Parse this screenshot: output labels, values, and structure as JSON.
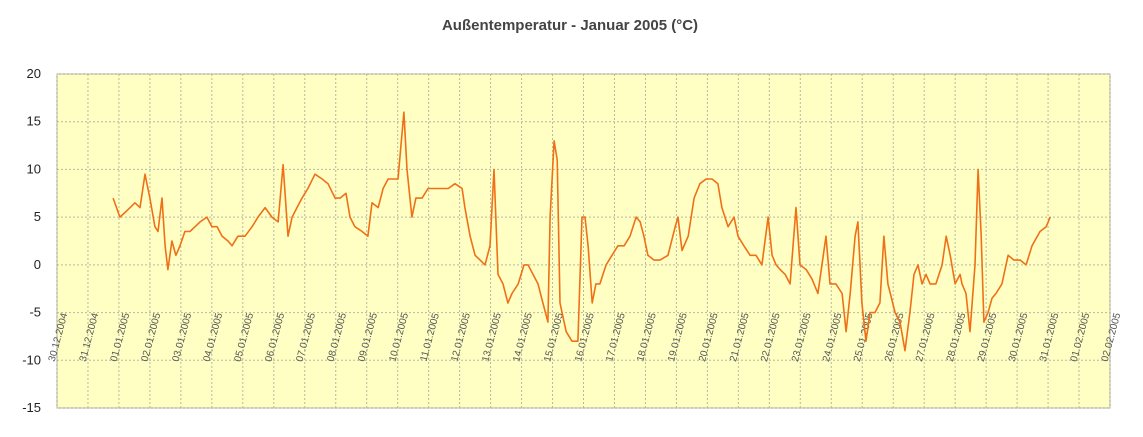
{
  "chart_data": {
    "type": "line",
    "title": "Außentemperatur - Januar 2005 (°C)",
    "xlim": [
      0,
      34
    ],
    "xticks": [
      {
        "value": 0,
        "label": "30.12.2004"
      },
      {
        "value": 1,
        "label": "31.12.2004"
      },
      {
        "value": 2,
        "label": "01.01.2005"
      },
      {
        "value": 3,
        "label": "02.01.2005"
      },
      {
        "value": 4,
        "label": "03.01.2005"
      },
      {
        "value": 5,
        "label": "04.01.2005"
      },
      {
        "value": 6,
        "label": "05.01.2005"
      },
      {
        "value": 7,
        "label": "06.01.2005"
      },
      {
        "value": 8,
        "label": "07.01.2005"
      },
      {
        "value": 9,
        "label": "08.01.2005"
      },
      {
        "value": 10,
        "label": "09.01.2005"
      },
      {
        "value": 11,
        "label": "10.01.2005"
      },
      {
        "value": 12,
        "label": "11.01.2005"
      },
      {
        "value": 13,
        "label": "12.01.2005"
      },
      {
        "value": 14,
        "label": "13.01.2005"
      },
      {
        "value": 15,
        "label": "14.01.2005"
      },
      {
        "value": 16,
        "label": "15.01.2005"
      },
      {
        "value": 17,
        "label": "16.01.2005"
      },
      {
        "value": 18,
        "label": "17.01.2005"
      },
      {
        "value": 19,
        "label": "18.01.2005"
      },
      {
        "value": 20,
        "label": "19.01.2005"
      },
      {
        "value": 21,
        "label": "20.01.2005"
      },
      {
        "value": 22,
        "label": "21.01.2005"
      },
      {
        "value": 23,
        "label": "22.01.2005"
      },
      {
        "value": 24,
        "label": "23.01.2005"
      },
      {
        "value": 25,
        "label": "24.01.2005"
      },
      {
        "value": 26,
        "label": "25.01.2005"
      },
      {
        "value": 27,
        "label": "26.01.2005"
      },
      {
        "value": 28,
        "label": "27.01.2005"
      },
      {
        "value": 29,
        "label": "28.01.2005"
      },
      {
        "value": 30,
        "label": "29.01.2005"
      },
      {
        "value": 31,
        "label": "30.01.2005"
      },
      {
        "value": 32,
        "label": "31.01.2005"
      },
      {
        "value": 33,
        "label": "01.02.2005"
      },
      {
        "value": 34,
        "label": "02.02.2005"
      }
    ],
    "ylim": [
      -15,
      20
    ],
    "yticks": [
      -15,
      -10,
      -5,
      0,
      5,
      10,
      15,
      20
    ],
    "grid": true,
    "series": [
      {
        "color": "#f07018",
        "x": [
          1.81,
          2.03,
          2.2,
          2.36,
          2.52,
          2.68,
          2.84,
          3.0,
          3.16,
          3.26,
          3.39,
          3.49,
          3.58,
          3.71,
          3.84,
          3.97,
          4.13,
          4.29,
          4.46,
          4.62,
          4.84,
          5.0,
          5.17,
          5.33,
          5.52,
          5.65,
          5.84,
          6.07,
          6.3,
          6.49,
          6.72,
          6.94,
          7.14,
          7.3,
          7.46,
          7.59,
          7.75,
          7.91,
          8.1,
          8.33,
          8.56,
          8.75,
          8.98,
          9.14,
          9.33,
          9.46,
          9.62,
          9.85,
          10.04,
          10.17,
          10.37,
          10.53,
          10.69,
          10.85,
          11.01,
          11.2,
          11.3,
          11.46,
          11.59,
          11.79,
          11.98,
          12.14,
          12.37,
          12.63,
          12.85,
          13.08,
          13.17,
          13.34,
          13.5,
          13.66,
          13.82,
          13.98,
          14.11,
          14.24,
          14.4,
          14.56,
          14.69,
          14.89,
          15.08,
          15.21,
          15.37,
          15.53,
          15.69,
          15.85,
          15.92,
          16.05,
          16.15,
          16.24,
          16.44,
          16.63,
          16.82,
          16.95,
          17.05,
          17.15,
          17.28,
          17.4,
          17.53,
          17.73,
          17.92,
          18.11,
          18.31,
          18.5,
          18.7,
          18.83,
          18.95,
          19.08,
          19.28,
          19.47,
          19.73,
          19.96,
          20.05,
          20.18,
          20.38,
          20.57,
          20.76,
          20.96,
          21.15,
          21.34,
          21.47,
          21.67,
          21.86,
          21.99,
          22.18,
          22.38,
          22.57,
          22.76,
          22.96,
          23.09,
          23.22,
          23.35,
          23.51,
          23.67,
          23.86,
          23.99,
          24.19,
          24.38,
          24.57,
          24.83,
          24.96,
          25.15,
          25.35,
          25.48,
          25.61,
          25.77,
          25.86,
          25.99,
          26.12,
          26.25,
          26.41,
          26.57,
          26.7,
          26.83,
          27.06,
          27.22,
          27.38,
          27.54,
          27.67,
          27.8,
          27.93,
          28.06,
          28.19,
          28.38,
          28.58,
          28.71,
          28.84,
          29.0,
          29.16,
          29.22,
          29.35,
          29.48,
          29.64,
          29.74,
          29.84,
          29.93,
          30.06,
          30.19,
          30.32,
          30.51,
          30.71,
          30.9,
          31.1,
          31.29,
          31.48,
          31.74,
          31.94,
          32.07
        ],
        "values": [
          7,
          5,
          5.5,
          6,
          6.5,
          6,
          9.5,
          7,
          4,
          3.5,
          7,
          2,
          -0.5,
          2.5,
          1,
          2,
          3.5,
          3.5,
          4,
          4.5,
          5,
          4,
          4,
          3,
          2.5,
          2,
          3,
          3,
          4,
          5,
          6,
          5,
          4.5,
          10.5,
          3,
          5,
          6,
          7,
          8,
          9.5,
          9,
          8.5,
          7,
          7,
          7.5,
          5,
          4,
          3.5,
          3,
          6.5,
          6,
          8,
          9,
          9,
          9,
          16,
          10,
          5,
          7,
          7,
          8,
          8,
          8,
          8,
          8.5,
          8,
          6,
          3,
          1,
          0.5,
          0,
          2,
          10,
          -1,
          -2,
          -4,
          -3,
          -2,
          0,
          0,
          -1,
          -2,
          -4,
          -6,
          5,
          13,
          11,
          -4,
          -7,
          -8,
          -8,
          5,
          5,
          2,
          -4,
          -2,
          -2,
          0,
          1,
          2,
          2,
          3,
          5,
          4.5,
          3,
          1,
          0.5,
          0.5,
          1,
          4,
          5,
          1.5,
          3,
          7,
          8.5,
          9,
          9,
          8.5,
          6,
          4,
          5,
          3,
          2,
          1,
          1,
          0,
          5,
          1,
          0,
          -0.5,
          -1,
          -2,
          6,
          0,
          -0.5,
          -1.5,
          -3,
          3,
          -2,
          -2,
          -3,
          -7,
          -3,
          3,
          4.5,
          -4,
          -8,
          -5,
          -5,
          -4,
          3,
          -2,
          -5,
          -6,
          -9,
          -5,
          -1,
          0,
          -2,
          -1,
          -2,
          -2,
          0,
          3,
          1,
          -2,
          -1,
          -2,
          -3,
          -7,
          0,
          10,
          3,
          -6,
          -5,
          -3.5,
          -3,
          -2,
          1,
          0.5,
          0.5,
          0,
          2,
          3.5,
          4,
          5
        ]
      }
    ]
  }
}
